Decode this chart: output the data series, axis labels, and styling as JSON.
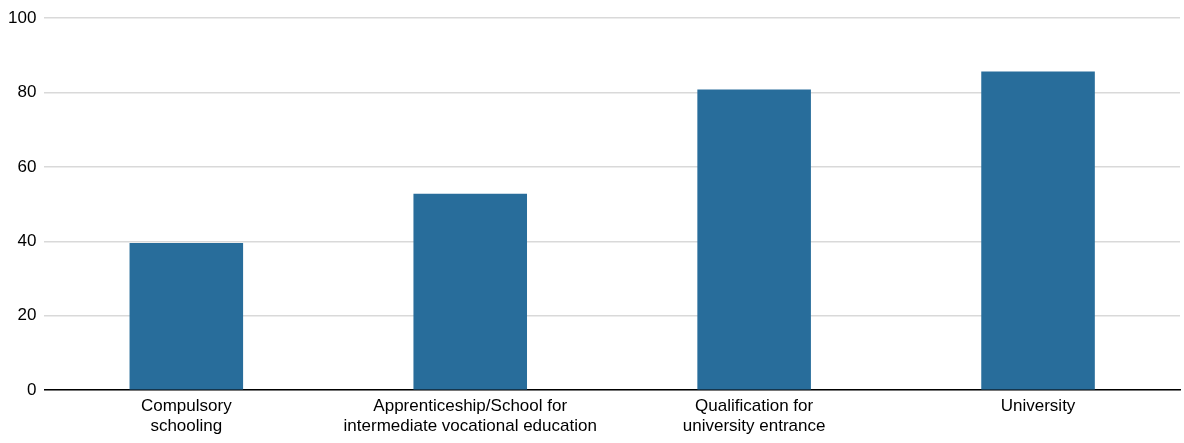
{
  "chart_data": {
    "type": "bar",
    "categories": [
      "Compulsory schooling",
      "Apprenticeship/School for intermediate vocational education",
      "Qualification for university entrance",
      "University"
    ],
    "values": [
      39.6,
      52.8,
      80.8,
      85.7
    ],
    "color": "#286d9b",
    "ylim": [
      0,
      100
    ],
    "yticks": [
      0,
      20,
      40,
      60,
      80,
      100
    ],
    "grid": "y",
    "legend": false
  }
}
